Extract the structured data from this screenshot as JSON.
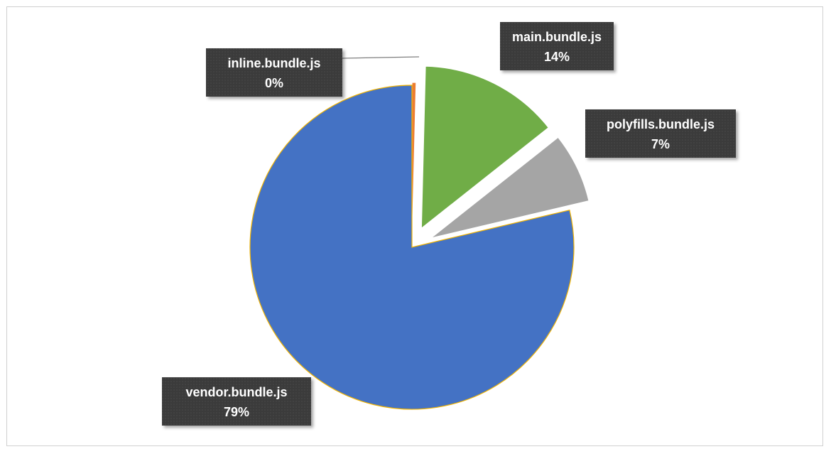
{
  "chart_data": {
    "type": "pie",
    "title": "",
    "categories": [
      "inline.bundle.js",
      "main.bundle.js",
      "polyfills.bundle.js",
      "vendor.bundle.js"
    ],
    "values": [
      0.4,
      14,
      7,
      79
    ],
    "labels": [
      "0%",
      "14%",
      "7%",
      "79%"
    ],
    "colors": [
      "#ED7D31",
      "#70AD47",
      "#A5A5A5",
      "#4472C4"
    ],
    "legend": "none",
    "exploded": true
  }
}
